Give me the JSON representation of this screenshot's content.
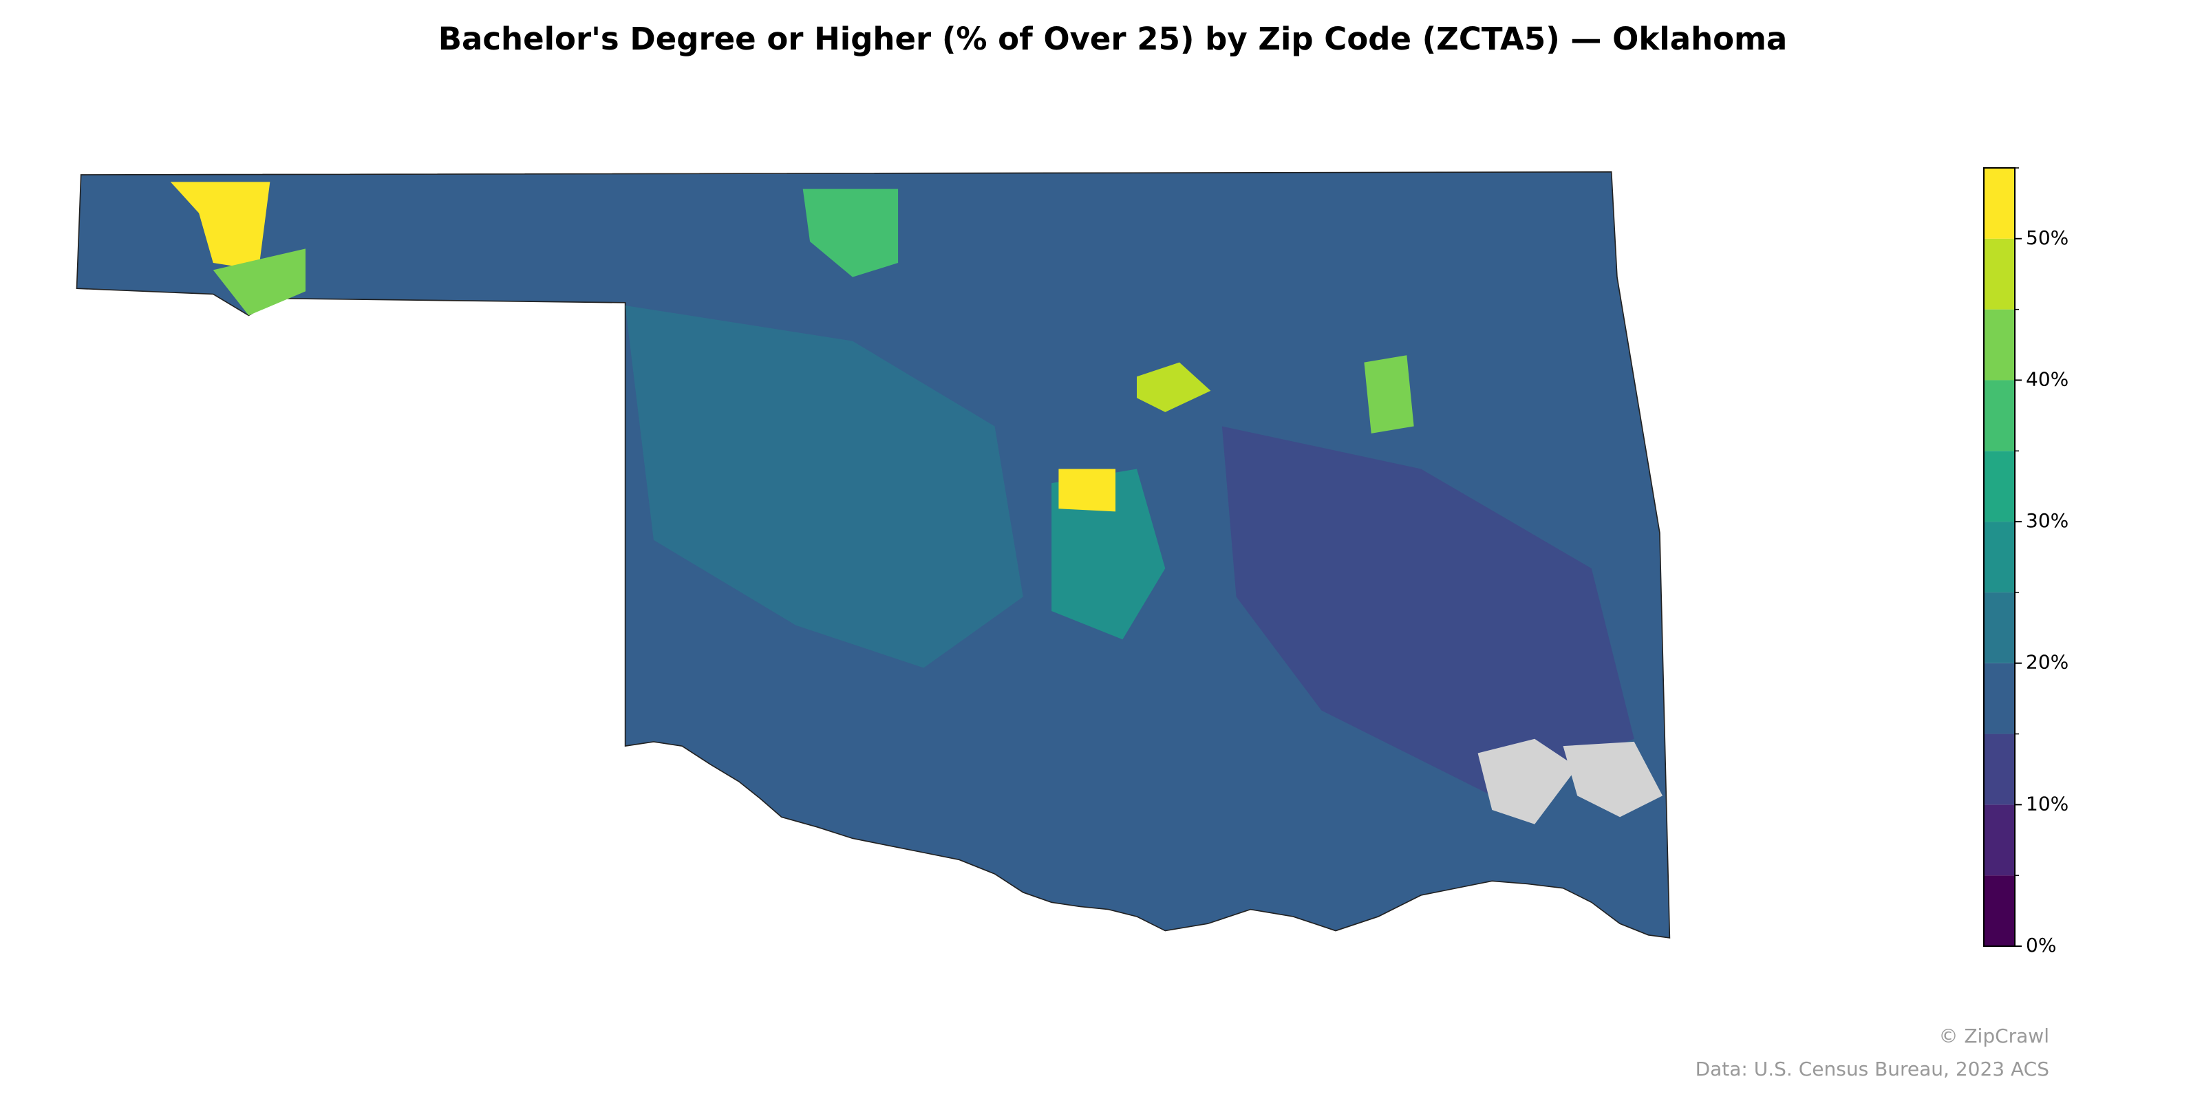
{
  "chart_data": {
    "type": "choropleth",
    "title": "Bachelor's Degree or Higher (% of Over 25) by Zip Code (ZCTA5) — Oklahoma",
    "colorbar": {
      "lim": [
        0,
        55
      ],
      "bins": [
        0,
        5,
        10,
        15,
        20,
        25,
        30,
        35,
        40,
        45,
        50,
        55
      ],
      "colors": [
        "#440154",
        "#482475",
        "#414487",
        "#355f8d",
        "#2a788e",
        "#21918c",
        "#22a884",
        "#44bf70",
        "#7ad151",
        "#bddf26",
        "#fde725"
      ],
      "ticks": [
        {
          "value": 0,
          "label": "0%"
        },
        {
          "value": 10,
          "label": "10%"
        },
        {
          "value": 20,
          "label": "20%"
        },
        {
          "value": 30,
          "label": "30%"
        },
        {
          "value": 40,
          "label": "40%"
        },
        {
          "value": 50,
          "label": "50%"
        }
      ],
      "minor_ticks": [
        5,
        15,
        25,
        35,
        45,
        55
      ]
    },
    "credits": [
      "© ZipCrawl",
      "Data: U.S. Census Bureau, 2023 ACS"
    ]
  }
}
